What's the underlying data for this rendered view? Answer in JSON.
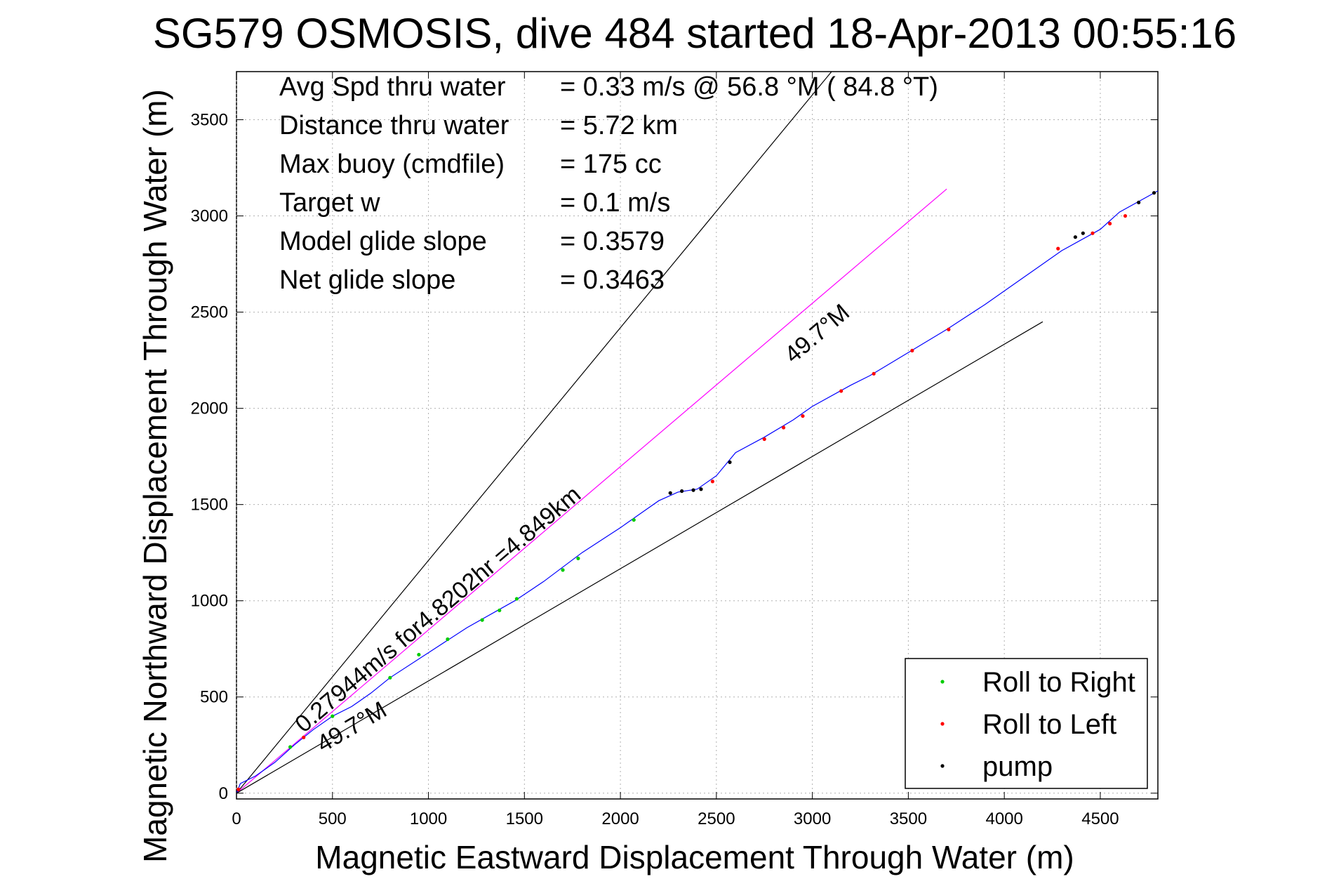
{
  "chart_data": {
    "type": "line",
    "title": "SG579 OSMOSIS, dive 484 started 18-Apr-2013 00:55:16",
    "xlabel": "Magnetic Eastward Displacement Through Water (m)",
    "ylabel": "Magnetic Northward Displacement Through Water (m)",
    "xlim": [
      0,
      4800
    ],
    "ylim": [
      -30,
      3750
    ],
    "xticks": [
      0,
      500,
      1000,
      1500,
      2000,
      2500,
      3000,
      3500,
      4000,
      4500
    ],
    "yticks": [
      0,
      500,
      1000,
      1500,
      2000,
      2500,
      3000,
      3500
    ],
    "grid": true,
    "legend_position": "bottom-right",
    "info": [
      {
        "label": "Avg Spd thru water",
        "value": "=  0.33 m/s @  56.8 °M ( 84.8 °T)"
      },
      {
        "label": "Distance thru water",
        "value": "=  5.72 km"
      },
      {
        "label": "Max buoy (cmdfile)",
        "value": "= 175 cc"
      },
      {
        "label": "Target w",
        "value": "= 0.1 m/s"
      },
      {
        "label": "Model glide slope",
        "value": "= 0.3579"
      },
      {
        "label": "Net glide slope",
        "value": "= 0.3463"
      }
    ],
    "annotations": {
      "current": "0.27944m/s for4.8202hr =4.849km",
      "heading_upper": "49.7°M",
      "heading_lower": "49.7°M"
    },
    "reference_lines": [
      {
        "name": "upper-bound",
        "color": "#000000",
        "points": [
          [
            0,
            0
          ],
          [
            3100,
            3750
          ]
        ]
      },
      {
        "name": "current",
        "color": "#ff00ff",
        "points": [
          [
            0,
            0
          ],
          [
            3700,
            3140
          ]
        ]
      },
      {
        "name": "lower-bound",
        "color": "#000000",
        "points": [
          [
            0,
            0
          ],
          [
            4200,
            2450
          ]
        ]
      }
    ],
    "series": [
      {
        "name": "track",
        "color": "#0000ff",
        "points": [
          [
            0,
            0
          ],
          [
            20,
            50
          ],
          [
            100,
            90
          ],
          [
            200,
            160
          ],
          [
            300,
            250
          ],
          [
            400,
            330
          ],
          [
            500,
            400
          ],
          [
            600,
            450
          ],
          [
            700,
            520
          ],
          [
            800,
            600
          ],
          [
            1000,
            730
          ],
          [
            1200,
            860
          ],
          [
            1450,
            1000
          ],
          [
            1600,
            1100
          ],
          [
            1800,
            1250
          ],
          [
            2000,
            1380
          ],
          [
            2100,
            1450
          ],
          [
            2200,
            1520
          ],
          [
            2300,
            1565
          ],
          [
            2400,
            1580
          ],
          [
            2500,
            1650
          ],
          [
            2600,
            1770
          ],
          [
            2750,
            1850
          ],
          [
            2900,
            1940
          ],
          [
            3000,
            2010
          ],
          [
            3200,
            2120
          ],
          [
            3300,
            2170
          ],
          [
            3500,
            2290
          ],
          [
            3700,
            2410
          ],
          [
            3900,
            2540
          ],
          [
            4100,
            2680
          ],
          [
            4300,
            2820
          ],
          [
            4500,
            2930
          ],
          [
            4600,
            3020
          ],
          [
            4800,
            3130
          ]
        ]
      }
    ],
    "markers": [
      {
        "name": "Roll to Right",
        "color": "#00cc00",
        "points": [
          [
            280,
            240
          ],
          [
            500,
            400
          ],
          [
            800,
            600
          ],
          [
            950,
            720
          ],
          [
            1100,
            800
          ],
          [
            1280,
            900
          ],
          [
            1370,
            950
          ],
          [
            1460,
            1010
          ],
          [
            1700,
            1160
          ],
          [
            1780,
            1220
          ],
          [
            2070,
            1420
          ]
        ]
      },
      {
        "name": "Roll to Left",
        "color": "#ff0000",
        "points": [
          [
            10,
            20
          ],
          [
            350,
            290
          ],
          [
            2480,
            1620
          ],
          [
            2750,
            1840
          ],
          [
            2850,
            1900
          ],
          [
            2950,
            1960
          ],
          [
            3150,
            2090
          ],
          [
            3320,
            2180
          ],
          [
            3520,
            2300
          ],
          [
            3710,
            2410
          ],
          [
            4280,
            2830
          ],
          [
            4460,
            2910
          ],
          [
            4550,
            2960
          ],
          [
            4630,
            3000
          ]
        ]
      },
      {
        "name": "pump",
        "color": "#000000",
        "points": [
          [
            2260,
            1560
          ],
          [
            2320,
            1570
          ],
          [
            2380,
            1575
          ],
          [
            2420,
            1580
          ],
          [
            2570,
            1720
          ],
          [
            4370,
            2890
          ],
          [
            4410,
            2910
          ],
          [
            4700,
            3070
          ],
          [
            4780,
            3120
          ]
        ]
      }
    ],
    "legend": [
      "Roll to Right",
      "Roll to Left",
      "pump"
    ]
  }
}
